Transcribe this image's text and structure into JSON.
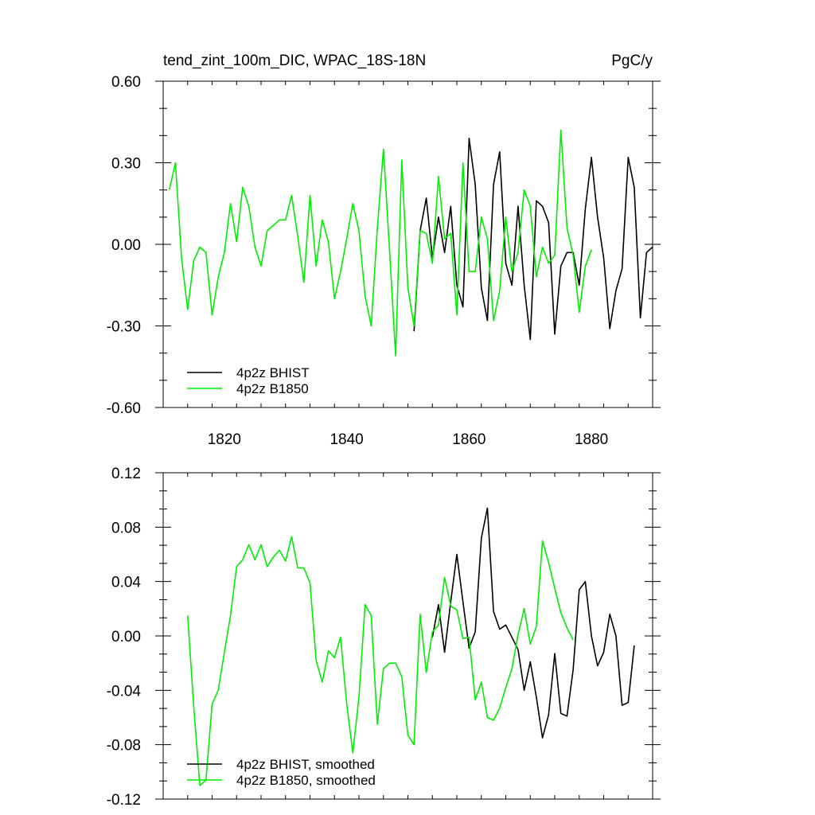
{
  "chart_data": [
    {
      "type": "line",
      "title": "tend_zint_100m_DIC, WPAC_18S-18N",
      "units": "PgC/y",
      "xlim": [
        1810,
        1890
      ],
      "ylim": [
        -0.6,
        0.6
      ],
      "x_ticks": [
        1820,
        1840,
        1860,
        1880
      ],
      "y_ticks": [
        -0.6,
        -0.3,
        0.0,
        0.3,
        0.6
      ],
      "x_tick_labels": [
        "1820",
        "1840",
        "1860",
        "1880"
      ],
      "y_tick_labels": [
        "-0.60",
        "-0.30",
        "0.00",
        "0.30",
        "0.60"
      ],
      "legend_position": "bottom-left",
      "series": [
        {
          "name": "4p2z BHIST",
          "color": "#000000",
          "x": [
            1851,
            1852,
            1853,
            1854,
            1855,
            1856,
            1857,
            1858,
            1859,
            1860,
            1861,
            1862,
            1863,
            1864,
            1865,
            1866,
            1867,
            1868,
            1869,
            1870,
            1871,
            1872,
            1873,
            1874,
            1875,
            1876,
            1877,
            1878,
            1879,
            1880,
            1881,
            1882,
            1883,
            1884,
            1885,
            1886,
            1887,
            1888,
            1889,
            1890
          ],
          "y": [
            -0.32,
            0.05,
            0.17,
            -0.05,
            0.1,
            -0.03,
            0.14,
            -0.15,
            -0.23,
            0.39,
            0.22,
            -0.16,
            -0.28,
            0.22,
            0.34,
            -0.07,
            -0.15,
            0.14,
            -0.15,
            -0.35,
            0.16,
            0.14,
            0.08,
            -0.33,
            -0.08,
            -0.03,
            -0.03,
            -0.15,
            0.13,
            0.32,
            0.1,
            -0.05,
            -0.31,
            -0.17,
            -0.09,
            0.32,
            0.21,
            -0.27,
            -0.03,
            -0.01
          ]
        },
        {
          "name": "4p2z B1850",
          "color": "#00ee00",
          "x": [
            1811,
            1812,
            1813,
            1814,
            1815,
            1816,
            1817,
            1818,
            1819,
            1820,
            1821,
            1822,
            1823,
            1824,
            1825,
            1826,
            1827,
            1828,
            1829,
            1830,
            1831,
            1832,
            1833,
            1834,
            1835,
            1836,
            1837,
            1838,
            1839,
            1840,
            1841,
            1842,
            1843,
            1844,
            1845,
            1846,
            1847,
            1848,
            1849,
            1850,
            1851,
            1852,
            1853,
            1854,
            1855,
            1856,
            1857,
            1858,
            1859,
            1860,
            1861,
            1862,
            1863,
            1864,
            1865,
            1866,
            1867,
            1868,
            1869,
            1870,
            1871,
            1872,
            1873,
            1874,
            1875,
            1876,
            1877,
            1878,
            1879,
            1880
          ],
          "y": [
            0.2,
            0.3,
            -0.05,
            -0.24,
            -0.06,
            -0.01,
            -0.03,
            -0.26,
            -0.12,
            -0.03,
            0.15,
            0.01,
            0.21,
            0.14,
            -0.01,
            -0.08,
            0.05,
            0.07,
            0.09,
            0.09,
            0.18,
            0.03,
            -0.14,
            0.18,
            -0.08,
            0.09,
            0.01,
            -0.2,
            -0.1,
            0.02,
            0.15,
            0.05,
            -0.19,
            -0.3,
            0.06,
            0.35,
            -0.02,
            -0.41,
            0.31,
            -0.16,
            -0.3,
            0.05,
            0.04,
            -0.07,
            0.25,
            0.02,
            0.04,
            -0.26,
            0.3,
            -0.1,
            -0.1,
            0.1,
            0.02,
            -0.28,
            -0.17,
            0.1,
            -0.1,
            -0.03,
            0.2,
            0.14,
            -0.12,
            -0.01,
            -0.07,
            -0.04,
            0.42,
            0.06,
            -0.04,
            -0.25,
            -0.08,
            -0.02
          ]
        }
      ]
    },
    {
      "type": "line",
      "title": "",
      "units": "",
      "xlim": [
        1810,
        1890
      ],
      "ylim": [
        -0.12,
        0.12
      ],
      "x_ticks": [
        1820,
        1840,
        1860,
        1880
      ],
      "y_ticks": [
        -0.12,
        -0.08,
        -0.04,
        0.0,
        0.04,
        0.08,
        0.12
      ],
      "x_tick_labels": [],
      "y_tick_labels": [
        "-0.12",
        "-0.08",
        "-0.04",
        "0.00",
        "0.04",
        "0.08",
        "0.12"
      ],
      "legend_position": "bottom-left",
      "series": [
        {
          "name": "4p2z BHIST, smoothed",
          "color": "#000000",
          "x": [
            1854,
            1855,
            1856,
            1857,
            1858,
            1859,
            1860,
            1861,
            1862,
            1863,
            1864,
            1865,
            1866,
            1867,
            1868,
            1869,
            1870,
            1871,
            1872,
            1873,
            1874,
            1875,
            1876,
            1877,
            1878,
            1879,
            1880,
            1881,
            1882,
            1883,
            1884,
            1885,
            1886,
            1887
          ],
          "y": [
            -0.001,
            0.023,
            -0.012,
            0.025,
            0.06,
            0.025,
            -0.009,
            0.003,
            0.072,
            0.094,
            0.018,
            0.005,
            0.008,
            -0.001,
            -0.01,
            -0.04,
            -0.019,
            -0.045,
            -0.075,
            -0.058,
            -0.013,
            -0.057,
            -0.059,
            -0.025,
            0.034,
            0.04,
            0.0,
            -0.022,
            -0.012,
            0.016,
            0.0,
            -0.051,
            -0.049,
            -0.007
          ]
        },
        {
          "name": "4p2z B1850, smoothed",
          "color": "#00ee00",
          "x": [
            1814,
            1815,
            1816,
            1817,
            1818,
            1819,
            1820,
            1821,
            1822,
            1823,
            1824,
            1825,
            1826,
            1827,
            1828,
            1829,
            1830,
            1831,
            1832,
            1833,
            1834,
            1835,
            1836,
            1837,
            1838,
            1839,
            1840,
            1841,
            1842,
            1843,
            1844,
            1845,
            1846,
            1847,
            1848,
            1849,
            1850,
            1851,
            1852,
            1853,
            1854,
            1855,
            1856,
            1857,
            1858,
            1859,
            1860,
            1861,
            1862,
            1863,
            1864,
            1865,
            1866,
            1867,
            1868,
            1869,
            1870,
            1871,
            1872,
            1873,
            1874,
            1875,
            1876,
            1877
          ],
          "y": [
            0.015,
            -0.052,
            -0.11,
            -0.106,
            -0.05,
            -0.04,
            -0.012,
            0.015,
            0.051,
            0.056,
            0.067,
            0.056,
            0.067,
            0.051,
            0.058,
            0.063,
            0.055,
            0.073,
            0.05,
            0.05,
            0.039,
            -0.018,
            -0.034,
            -0.011,
            -0.016,
            -0.001,
            -0.05,
            -0.086,
            -0.045,
            0.023,
            0.015,
            -0.065,
            -0.024,
            -0.02,
            -0.02,
            -0.03,
            -0.073,
            -0.08,
            0.016,
            -0.027,
            0.003,
            0.008,
            0.043,
            0.022,
            0.019,
            -0.002,
            -0.001,
            -0.047,
            -0.034,
            -0.06,
            -0.062,
            -0.053,
            -0.038,
            -0.024,
            0.001,
            0.02,
            -0.006,
            0.007,
            0.07,
            0.054,
            0.035,
            0.017,
            0.006,
            -0.003
          ]
        }
      ]
    }
  ]
}
